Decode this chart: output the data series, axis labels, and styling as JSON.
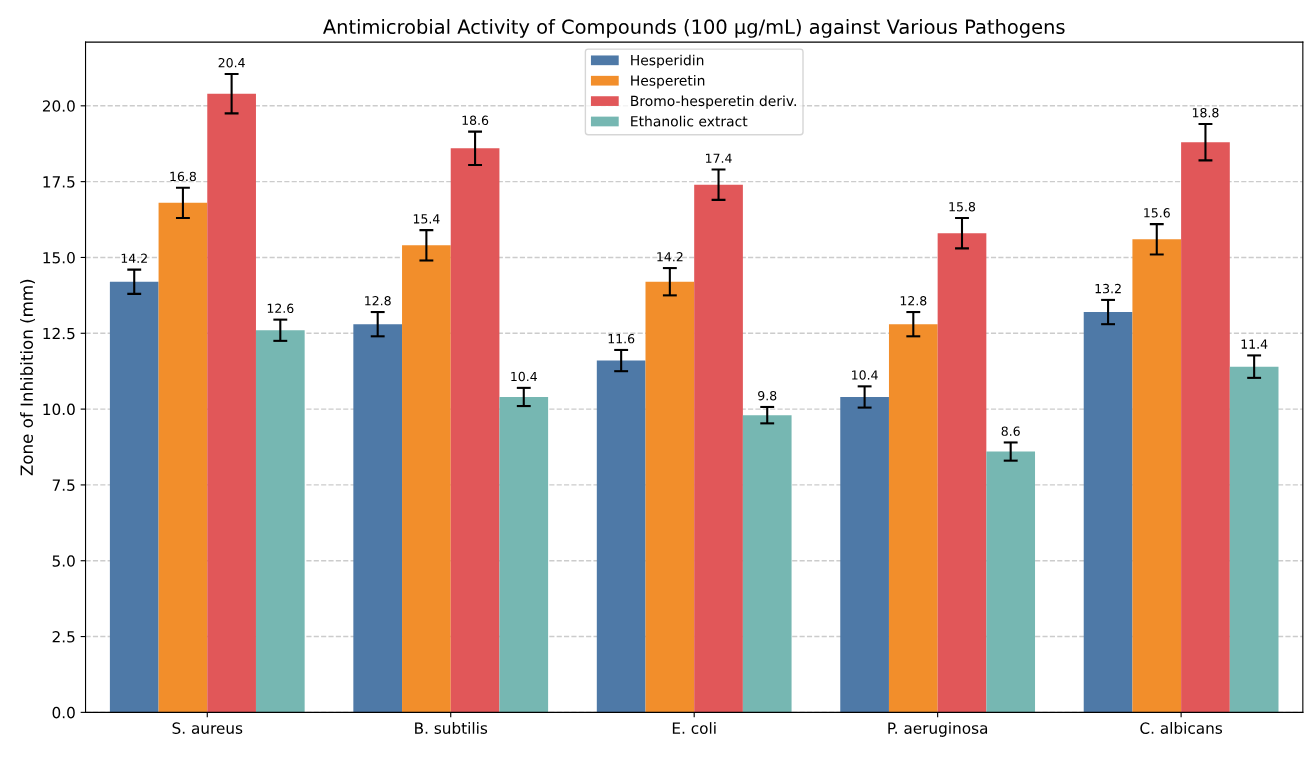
{
  "chart_data": {
    "type": "bar",
    "title": "Antimicrobial Activity of Compounds (100 µg/mL) against Various Pathogens",
    "ylabel": "Zone of Inhibition (mm)",
    "categories": [
      "S. aureus",
      "B. subtilis",
      "E. coli",
      "P. aeruginosa",
      "C. albicans"
    ],
    "series": [
      {
        "name": "Hesperidin",
        "color": "#4e79a7",
        "values": [
          14.2,
          12.8,
          11.6,
          10.4,
          13.2
        ],
        "errors": [
          0.4,
          0.4,
          0.35,
          0.35,
          0.4
        ]
      },
      {
        "name": "Hesperetin",
        "color": "#f28e2b",
        "values": [
          16.8,
          15.4,
          14.2,
          12.8,
          15.6
        ],
        "errors": [
          0.5,
          0.5,
          0.45,
          0.4,
          0.5
        ]
      },
      {
        "name": "Bromo-hesperetin deriv.",
        "color": "#e15759",
        "values": [
          20.4,
          18.6,
          17.4,
          15.8,
          18.8
        ],
        "errors": [
          0.65,
          0.55,
          0.5,
          0.5,
          0.6
        ]
      },
      {
        "name": "Ethanolic extract",
        "color": "#76b7b2",
        "values": [
          12.6,
          10.4,
          9.8,
          8.6,
          11.4
        ],
        "errors": [
          0.35,
          0.3,
          0.27,
          0.3,
          0.37
        ]
      }
    ],
    "ylim": [
      0,
      22.1
    ],
    "yticks": [
      {
        "value": 0,
        "label": "0.0"
      },
      {
        "value": 2.5,
        "label": "2.5"
      },
      {
        "value": 5,
        "label": "5.0"
      },
      {
        "value": 7.5,
        "label": "7.5"
      },
      {
        "value": 10,
        "label": "10.0"
      },
      {
        "value": 12.5,
        "label": "12.5"
      },
      {
        "value": 15,
        "label": "15.0"
      },
      {
        "value": 17.5,
        "label": "17.5"
      },
      {
        "value": 20,
        "label": "20.0"
      }
    ],
    "grid": "y",
    "legend": "top",
    "data_labels": true
  }
}
